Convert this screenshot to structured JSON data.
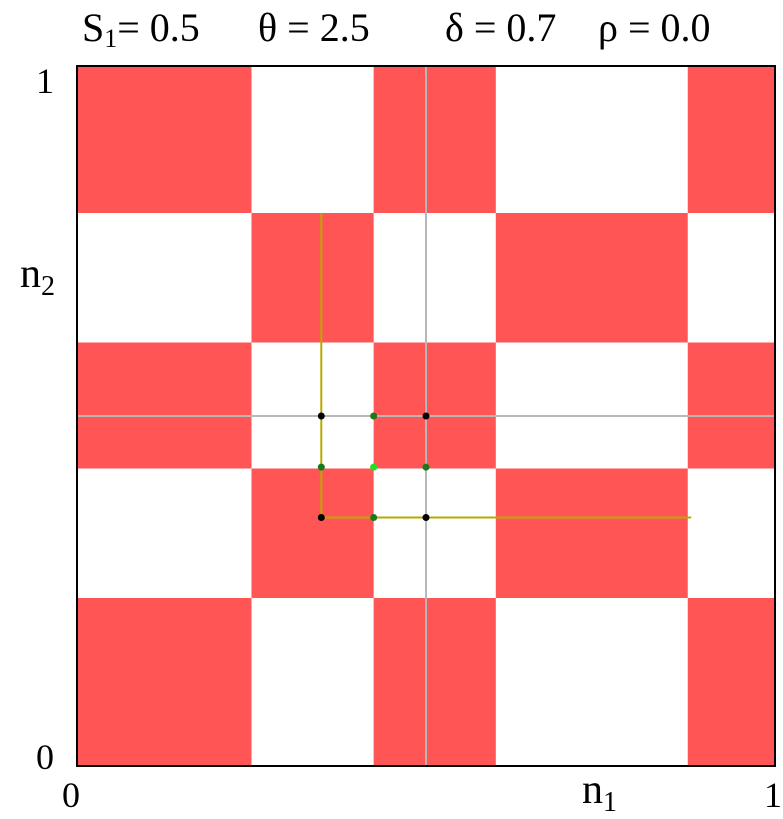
{
  "params": [
    {
      "symbol": "S",
      "sub": "1",
      "text": "= 0.5"
    },
    {
      "symbol": "θ",
      "sub": "",
      "text": " = 2.5"
    },
    {
      "symbol": "δ",
      "sub": "",
      "text": " = 0.7"
    },
    {
      "symbol": "ρ",
      "sub": "",
      "text": " = 0.0"
    }
  ],
  "chart_data": {
    "type": "heatmap",
    "xlabel": "n",
    "xlabel_sub": "1",
    "ylabel": "n",
    "ylabel_sub": "2",
    "xlim": [
      0,
      1
    ],
    "ylim": [
      0,
      1
    ],
    "x_ticks": [
      "0",
      "1"
    ],
    "y_ticks": [
      "0",
      "1"
    ],
    "colors": {
      "filled": "#ff5555",
      "empty": "#ffffff",
      "path": "#b8a800",
      "grid": "#b8b8b8"
    },
    "x_edges": [
      0,
      0.25,
      0.425,
      0.6,
      0.875,
      1
    ],
    "y_edges": [
      0,
      0.24,
      0.425,
      0.605,
      0.79,
      1
    ],
    "filled_cells": [
      [
        0,
        4
      ],
      [
        2,
        4
      ],
      [
        4,
        4
      ],
      [
        1,
        3
      ],
      [
        3,
        3
      ],
      [
        0,
        2
      ],
      [
        2,
        2
      ],
      [
        4,
        2
      ],
      [
        1,
        1
      ],
      [
        3,
        1
      ],
      [
        0,
        0
      ],
      [
        2,
        0
      ],
      [
        4,
        0
      ]
    ],
    "crosshair": {
      "x": 0.5,
      "y": 0.5
    },
    "path": [
      [
        0.35,
        0.79
      ],
      [
        0.35,
        0.355
      ],
      [
        0.88,
        0.355
      ]
    ],
    "points": [
      {
        "x": 0.35,
        "y": 0.5,
        "color": "#000000"
      },
      {
        "x": 0.425,
        "y": 0.5,
        "color": "#1a7a1a"
      },
      {
        "x": 0.5,
        "y": 0.5,
        "color": "#000000"
      },
      {
        "x": 0.35,
        "y": 0.427,
        "color": "#1a7a1a"
      },
      {
        "x": 0.425,
        "y": 0.427,
        "color": "#22dd22"
      },
      {
        "x": 0.5,
        "y": 0.427,
        "color": "#1a7a1a"
      },
      {
        "x": 0.35,
        "y": 0.355,
        "color": "#000000"
      },
      {
        "x": 0.425,
        "y": 0.355,
        "color": "#1a7a1a"
      },
      {
        "x": 0.5,
        "y": 0.355,
        "color": "#000000"
      }
    ]
  }
}
